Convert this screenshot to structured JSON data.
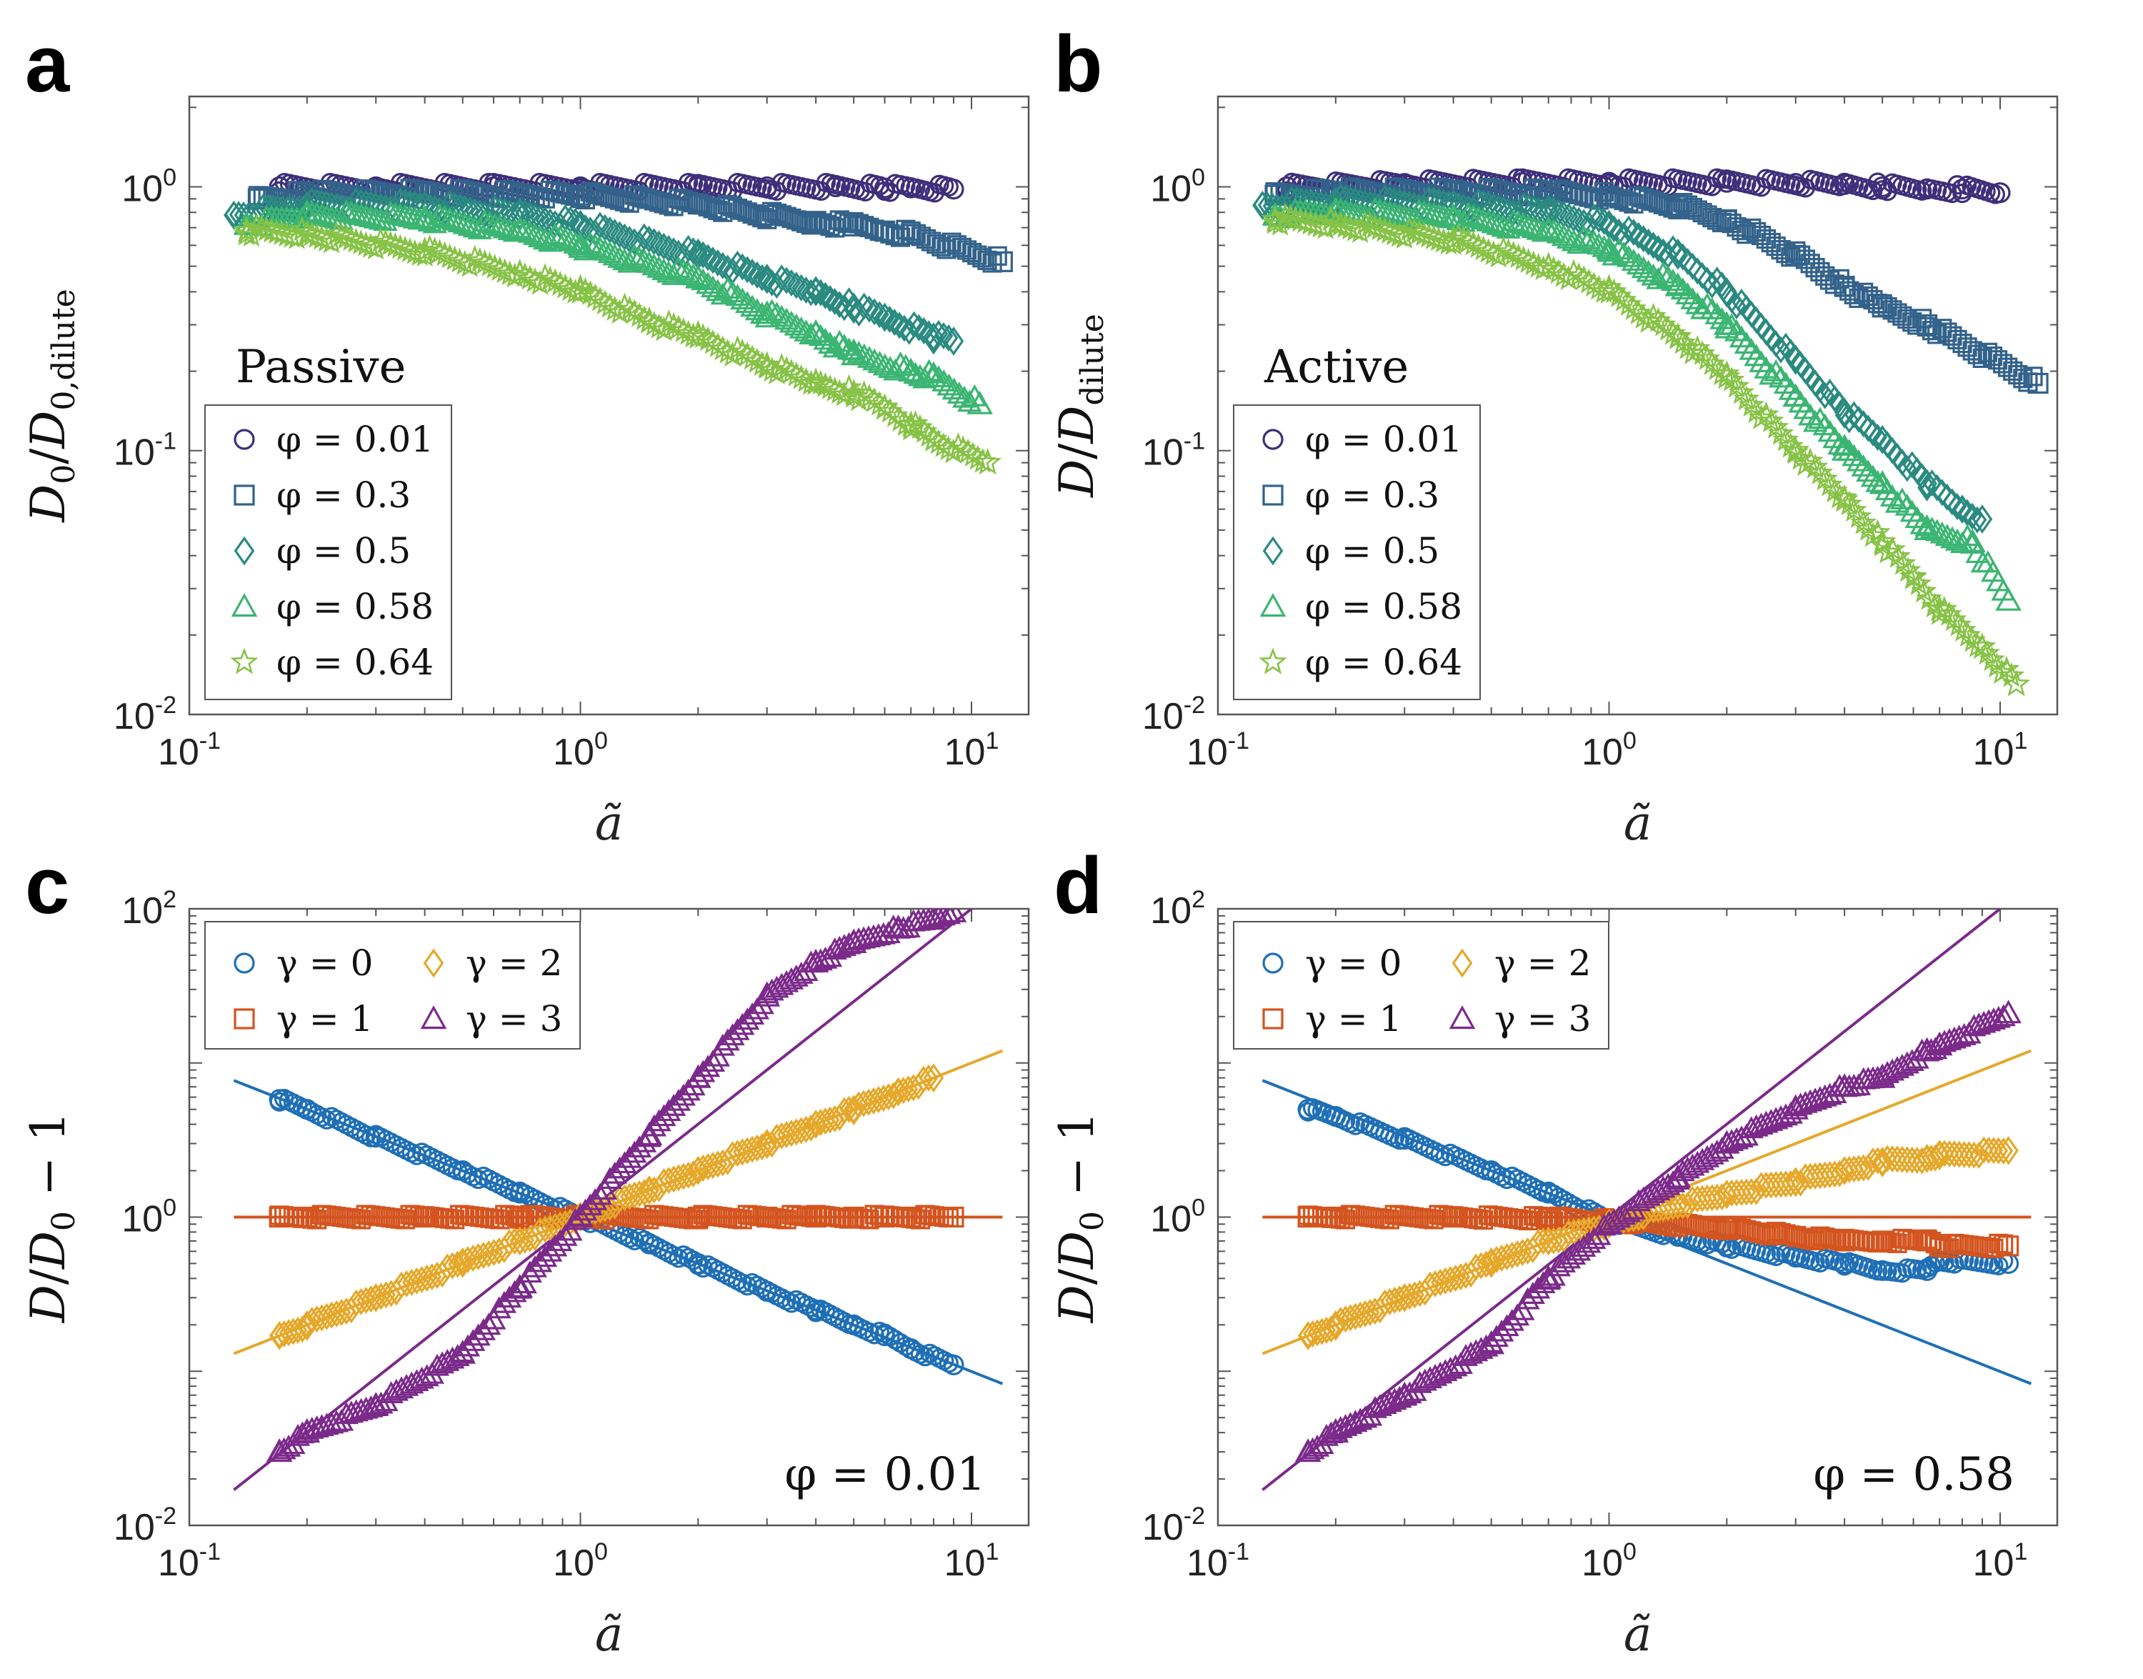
{
  "chart_data": [
    {
      "panel": "a",
      "type": "scatter",
      "xscale": "log",
      "yscale": "log",
      "xlabel": "ã",
      "ylabel": "D0/D0,dilute",
      "xlim": [
        0.1,
        14
      ],
      "ylim": [
        0.01,
        2.2
      ],
      "annotation": "Passive",
      "legend_position": "lower-left",
      "xticks": [
        {
          "base": "10",
          "exp": "-1"
        },
        {
          "base": "10",
          "exp": "0"
        },
        {
          "base": "10",
          "exp": "1"
        }
      ],
      "yticks": [
        {
          "base": "10",
          "exp": "-2"
        },
        {
          "base": "10",
          "exp": "-1"
        },
        {
          "base": "10",
          "exp": "0"
        }
      ],
      "series": [
        {
          "name": "φ = 0.01",
          "marker": "circle",
          "color": "#3e2f7a",
          "x": [
            0.17,
            0.3,
            0.6,
            1.0,
            2.0,
            3.0,
            4.5,
            6.0,
            7.0,
            9.0
          ],
          "y": [
            1.0,
            1.0,
            1.0,
            1.0,
            1.0,
            1.0,
            1.0,
            0.99,
            0.99,
            0.98
          ]
        },
        {
          "name": "φ = 0.3",
          "marker": "square",
          "color": "#33628a",
          "x": [
            0.15,
            0.2,
            0.4,
            1.0,
            2.0,
            3.0,
            4.0,
            5.0,
            6.0,
            7.0,
            12.0
          ],
          "y": [
            0.9,
            0.94,
            0.95,
            0.93,
            0.86,
            0.78,
            0.74,
            0.71,
            0.68,
            0.66,
            0.52
          ]
        },
        {
          "name": "φ = 0.5",
          "marker": "diamond",
          "color": "#2a8a80",
          "x": [
            0.13,
            0.2,
            0.4,
            0.7,
            1.0,
            2.0,
            3.0,
            4.0,
            5.0,
            6.0,
            8.0,
            9.0
          ],
          "y": [
            0.78,
            0.85,
            0.85,
            0.78,
            0.72,
            0.55,
            0.45,
            0.4,
            0.35,
            0.32,
            0.27,
            0.26
          ]
        },
        {
          "name": "φ = 0.58",
          "marker": "triangle",
          "color": "#3bb572",
          "x": [
            0.14,
            0.2,
            0.4,
            0.7,
            1.0,
            2.0,
            3.0,
            4.0,
            5.0,
            7.0,
            8.0,
            10.5
          ],
          "y": [
            0.72,
            0.78,
            0.76,
            0.68,
            0.6,
            0.45,
            0.33,
            0.28,
            0.23,
            0.2,
            0.19,
            0.15
          ]
        },
        {
          "name": "φ = 0.64",
          "marker": "star",
          "color": "#86c245",
          "x": [
            0.14,
            0.2,
            0.4,
            0.7,
            1.0,
            1.5,
            2.0,
            3.0,
            4.0,
            5.0,
            6.0,
            7.0,
            8.0,
            11.0
          ],
          "y": [
            0.68,
            0.66,
            0.57,
            0.47,
            0.4,
            0.31,
            0.27,
            0.21,
            0.18,
            0.165,
            0.145,
            0.125,
            0.11,
            0.09
          ]
        }
      ]
    },
    {
      "panel": "b",
      "type": "scatter",
      "xscale": "log",
      "yscale": "log",
      "xlabel": "ã",
      "ylabel": "D/Ddilute",
      "xlim": [
        0.1,
        14
      ],
      "ylim": [
        0.01,
        2.2
      ],
      "annotation": "Active",
      "legend_position": "lower-left",
      "xticks": [
        {
          "base": "10",
          "exp": "-1"
        },
        {
          "base": "10",
          "exp": "0"
        },
        {
          "base": "10",
          "exp": "1"
        }
      ],
      "yticks": [
        {
          "base": "10",
          "exp": "-2"
        },
        {
          "base": "10",
          "exp": "-1"
        },
        {
          "base": "10",
          "exp": "0"
        }
      ],
      "series": [
        {
          "name": "φ = 0.01",
          "marker": "circle",
          "color": "#3e2f7a",
          "x": [
            0.15,
            0.3,
            0.6,
            1.0,
            2.0,
            3.0,
            4.0,
            5.0,
            6.5,
            8.0,
            10.0
          ],
          "y": [
            1.0,
            1.03,
            1.04,
            1.04,
            1.04,
            1.03,
            1.02,
            1.0,
            0.98,
            0.98,
            0.95
          ]
        },
        {
          "name": "φ = 0.3",
          "marker": "square",
          "color": "#33628a",
          "x": [
            0.14,
            0.2,
            0.4,
            0.7,
            1.0,
            1.5,
            2.0,
            3.0,
            4.0,
            5.0,
            6.5,
            12.5
          ],
          "y": [
            0.93,
            0.96,
            0.96,
            0.95,
            0.92,
            0.85,
            0.75,
            0.55,
            0.42,
            0.35,
            0.3,
            0.18
          ]
        },
        {
          "name": "φ = 0.5",
          "marker": "diamond",
          "color": "#2a8a80",
          "x": [
            0.13,
            0.2,
            0.4,
            0.7,
            1.0,
            1.5,
            2.0,
            3.0,
            4.0,
            5.0,
            6.5,
            8.0,
            9.0
          ],
          "y": [
            0.85,
            0.88,
            0.86,
            0.8,
            0.72,
            0.55,
            0.4,
            0.22,
            0.14,
            0.11,
            0.075,
            0.06,
            0.055
          ]
        },
        {
          "name": "φ = 0.58",
          "marker": "triangle",
          "color": "#3bb572",
          "x": [
            0.14,
            0.2,
            0.4,
            0.7,
            1.0,
            1.5,
            2.0,
            3.0,
            4.0,
            5.0,
            6.5,
            8.5,
            10.5
          ],
          "y": [
            0.78,
            0.8,
            0.77,
            0.68,
            0.58,
            0.42,
            0.3,
            0.16,
            0.1,
            0.075,
            0.05,
            0.045,
            0.027
          ]
        },
        {
          "name": "φ = 0.64",
          "marker": "star",
          "color": "#86c245",
          "x": [
            0.14,
            0.2,
            0.4,
            0.7,
            1.0,
            1.5,
            2.0,
            3.0,
            4.0,
            5.0,
            6.0,
            7.0,
            9.0,
            11.0
          ],
          "y": [
            0.75,
            0.72,
            0.63,
            0.5,
            0.4,
            0.27,
            0.19,
            0.1,
            0.065,
            0.045,
            0.033,
            0.025,
            0.018,
            0.013
          ]
        }
      ]
    },
    {
      "panel": "c",
      "type": "scatter",
      "xscale": "log",
      "yscale": "log",
      "xlabel": "ã",
      "ylabel": "D/D0 − 1",
      "xlim": [
        0.1,
        14
      ],
      "ylim": [
        0.01,
        100
      ],
      "annotation": "φ = 0.01",
      "legend_position": "top-left",
      "xticks": [
        {
          "base": "10",
          "exp": "-1"
        },
        {
          "base": "10",
          "exp": "0"
        },
        {
          "base": "10",
          "exp": "1"
        }
      ],
      "yticks": [
        {
          "base": "10",
          "exp": "-2"
        },
        {
          "base": "10",
          "exp": "0"
        },
        {
          "base": "10",
          "exp": "2"
        }
      ],
      "fit_lines": [
        {
          "gamma": 0,
          "color": "#1f6fb5",
          "x": [
            0.13,
            12
          ],
          "y": [
            7.7,
            0.083
          ]
        },
        {
          "gamma": 1,
          "color": "#d4541f",
          "x": [
            0.13,
            12
          ],
          "y": [
            1.0,
            1.0
          ]
        },
        {
          "gamma": 2,
          "color": "#e5a82a",
          "x": [
            0.13,
            12
          ],
          "y": [
            0.13,
            12
          ]
        },
        {
          "gamma": 3,
          "color": "#7b2a8a",
          "x": [
            0.13,
            12
          ],
          "y": [
            0.017,
            144
          ]
        }
      ],
      "series": [
        {
          "name": "γ = 0",
          "marker": "circle",
          "color": "#1f6fb5",
          "x": [
            0.17,
            0.2,
            0.3,
            0.5,
            0.7,
            1.0,
            1.5,
            2.0,
            3.0,
            4.0,
            5.0,
            6.0,
            7.0,
            9.0
          ],
          "y": [
            5.8,
            5.0,
            3.3,
            2.0,
            1.43,
            1.0,
            0.67,
            0.5,
            0.33,
            0.25,
            0.2,
            0.17,
            0.14,
            0.11
          ]
        },
        {
          "name": "γ = 1",
          "marker": "square",
          "color": "#d4541f",
          "x": [
            0.17,
            0.2,
            0.4,
            0.7,
            1.0,
            2.0,
            3.0,
            4.0,
            5.0,
            6.0,
            7.0,
            9.0
          ],
          "y": [
            1.0,
            1.0,
            1.0,
            1.0,
            1.0,
            1.0,
            1.0,
            1.0,
            1.0,
            1.0,
            1.0,
            1.0
          ]
        },
        {
          "name": "γ = 2",
          "marker": "diamond",
          "color": "#e5a82a",
          "x": [
            0.17,
            0.2,
            0.3,
            0.5,
            0.7,
            1.0,
            1.5,
            2.0,
            3.0,
            4.0,
            5.0,
            6.5,
            8.0
          ],
          "y": [
            0.17,
            0.2,
            0.3,
            0.5,
            0.7,
            1.0,
            1.5,
            2.0,
            3.0,
            4.0,
            5.0,
            6.5,
            8.0
          ]
        },
        {
          "name": "γ = 3",
          "marker": "triangle",
          "color": "#7b2a8a",
          "x": [
            0.17,
            0.2,
            0.3,
            0.5,
            0.7,
            1.0,
            1.5,
            2.0,
            3.0,
            4.0,
            5.0,
            6.5,
            8.0,
            9.0
          ],
          "y": [
            0.03,
            0.04,
            0.06,
            0.13,
            0.35,
            1.0,
            3.4,
            8.0,
            27,
            45,
            60,
            75,
            85,
            95
          ]
        }
      ]
    },
    {
      "panel": "d",
      "type": "scatter",
      "xscale": "log",
      "yscale": "log",
      "xlabel": "ã",
      "ylabel": "D/D0 − 1",
      "xlim": [
        0.1,
        14
      ],
      "ylim": [
        0.01,
        100
      ],
      "annotation": "φ = 0.58",
      "legend_position": "top-left",
      "xticks": [
        {
          "base": "10",
          "exp": "-1"
        },
        {
          "base": "10",
          "exp": "0"
        },
        {
          "base": "10",
          "exp": "1"
        }
      ],
      "yticks": [
        {
          "base": "10",
          "exp": "-2"
        },
        {
          "base": "10",
          "exp": "0"
        },
        {
          "base": "10",
          "exp": "2"
        }
      ],
      "fit_lines": [
        {
          "gamma": 0,
          "color": "#1f6fb5",
          "x": [
            0.13,
            12
          ],
          "y": [
            7.7,
            0.083
          ]
        },
        {
          "gamma": 1,
          "color": "#d4541f",
          "x": [
            0.13,
            12
          ],
          "y": [
            1.0,
            1.0
          ]
        },
        {
          "gamma": 2,
          "color": "#e5a82a",
          "x": [
            0.13,
            12
          ],
          "y": [
            0.13,
            12
          ]
        },
        {
          "gamma": 3,
          "color": "#7b2a8a",
          "x": [
            0.13,
            10
          ],
          "y": [
            0.017,
            100
          ]
        }
      ],
      "series": [
        {
          "name": "γ = 0",
          "marker": "circle",
          "color": "#1f6fb5",
          "x": [
            0.17,
            0.2,
            0.3,
            0.5,
            0.7,
            1.0,
            1.5,
            2.0,
            3.0,
            4.0,
            5.0,
            6.5,
            7.0,
            10.5
          ],
          "y": [
            5.0,
            4.5,
            3.2,
            2.0,
            1.43,
            0.95,
            0.75,
            0.65,
            0.55,
            0.5,
            0.45,
            0.45,
            0.52,
            0.5
          ]
        },
        {
          "name": "γ = 1",
          "marker": "square",
          "color": "#d4541f",
          "x": [
            0.17,
            0.2,
            0.4,
            0.7,
            1.0,
            2.0,
            3.0,
            4.0,
            5.0,
            6.5,
            7.0,
            10.5
          ],
          "y": [
            1.0,
            1.0,
            1.0,
            0.98,
            0.95,
            0.85,
            0.75,
            0.7,
            0.7,
            0.7,
            0.65,
            0.65
          ]
        },
        {
          "name": "γ = 2",
          "marker": "diamond",
          "color": "#e5a82a",
          "x": [
            0.17,
            0.2,
            0.3,
            0.5,
            0.7,
            1.0,
            1.5,
            2.0,
            3.0,
            4.0,
            5.0,
            6.5,
            7.0,
            10.5
          ],
          "y": [
            0.17,
            0.2,
            0.3,
            0.5,
            0.7,
            0.9,
            1.2,
            1.4,
            1.7,
            2.0,
            2.3,
            2.4,
            2.5,
            2.7
          ]
        },
        {
          "name": "γ = 3",
          "marker": "triangle",
          "color": "#7b2a8a",
          "x": [
            0.17,
            0.2,
            0.3,
            0.5,
            0.7,
            1.0,
            1.5,
            2.0,
            3.0,
            4.0,
            5.0,
            6.5,
            7.0,
            10.5
          ],
          "y": [
            0.03,
            0.04,
            0.07,
            0.15,
            0.4,
            0.9,
            1.8,
            3.0,
            5.0,
            7.0,
            8.0,
            12.0,
            13.0,
            21.0
          ]
        }
      ]
    }
  ],
  "panel_labels": [
    "a",
    "b",
    "c",
    "d"
  ]
}
